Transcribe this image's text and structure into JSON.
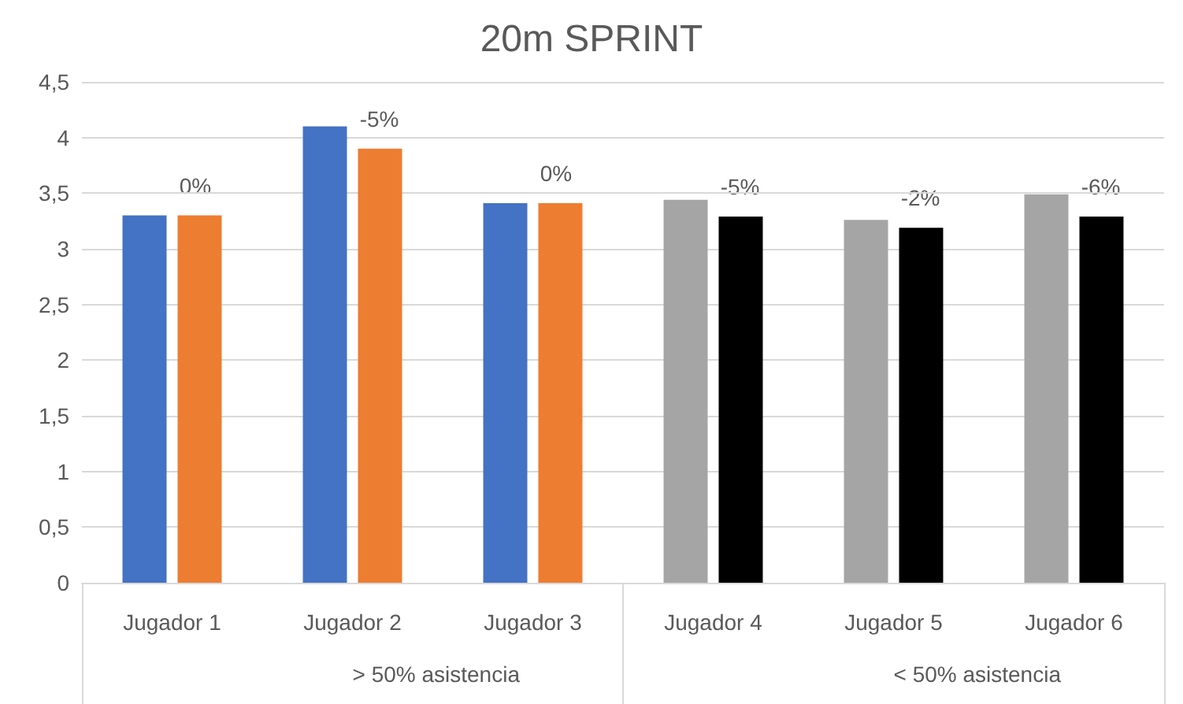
{
  "chart_data": {
    "type": "bar",
    "title": "20m SPRINT",
    "categories": [
      "Jugador 1",
      "Jugador 2",
      "Jugador 3",
      "Jugador 4",
      "Jugador 5",
      "Jugador 6"
    ],
    "series": [
      {
        "colors": [
          "#4472c4",
          "#4472c4",
          "#4472c4",
          "#a5a5a5",
          "#a5a5a5",
          "#a5a5a5"
        ],
        "values": [
          3.3,
          4.1,
          3.41,
          3.44,
          3.26,
          3.49
        ]
      },
      {
        "colors": [
          "#ed7d31",
          "#ed7d31",
          "#ed7d31",
          "#000000",
          "#000000",
          "#000000"
        ],
        "values": [
          3.3,
          3.9,
          3.41,
          3.29,
          3.19,
          3.29
        ]
      }
    ],
    "annotations": [
      "> 50% asistencia",
      "< 50% asistencia",
      {
        "text": "0%",
        "x": "Jugador 1",
        "y": 3.3
      },
      {
        "text": "-5%",
        "x": "Jugador 2",
        "y": 3.9
      },
      {
        "text": "0%",
        "x": "Jugador 3",
        "y": 3.41
      },
      {
        "text": "-5%",
        "x": "Jugador 4",
        "y": 3.29
      },
      {
        "text": "-2%",
        "x": "Jugador 5",
        "y": 3.19
      },
      {
        "text": "-6%",
        "x": "Jugador 6",
        "y": 3.29
      }
    ],
    "ylim": [
      0,
      4.5
    ],
    "yticks": [
      0,
      {
        "value": 0.5,
        "label": "0,5"
      },
      1,
      {
        "value": 1.5,
        "label": "1,5"
      },
      2,
      {
        "value": 2.5,
        "label": "2,5"
      },
      3,
      {
        "value": 3.5,
        "label": "3,5"
      },
      4,
      {
        "value": 4.5,
        "label": "4,5"
      }
    ],
    "grid": "y"
  }
}
